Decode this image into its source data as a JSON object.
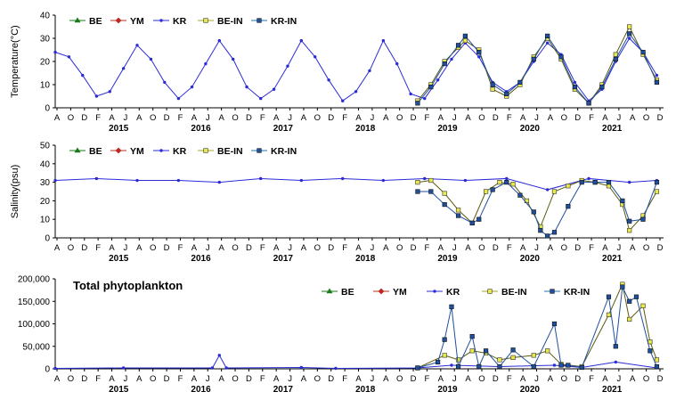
{
  "colors": {
    "BE": "#1a7a1a",
    "YM": "#c0281e",
    "KR": "#2b2bd6",
    "BE-IN": "#a3a81e",
    "KR-IN": "#1f77b4",
    "KR-IN_fill": "#1f4f9e",
    "BE-IN_fill": "#e8e84a"
  },
  "chart_data": [
    {
      "type": "line",
      "ylabel": "Temperature(°C)",
      "ylim": [
        0,
        40
      ],
      "yticks": [
        0,
        10,
        20,
        30,
        40
      ],
      "xlim": [
        "2014-08-01",
        "2021-12-31"
      ],
      "month_tick_labels": [
        "A",
        "O",
        "D",
        "F",
        "A",
        "J",
        "A",
        "O",
        "D",
        "F",
        "A",
        "J",
        "A",
        "O",
        "D",
        "F",
        "A",
        "J",
        "A",
        "O",
        "D",
        "F",
        "A",
        "J",
        "A",
        "O",
        "D",
        "F",
        "A",
        "J",
        "A",
        "O",
        "D",
        "F",
        "A",
        "J",
        "A",
        "O",
        "D",
        "F",
        "A",
        "J",
        "A",
        "O",
        "D"
      ],
      "year_labels": [
        "2015",
        "2016",
        "2017",
        "2018",
        "2019",
        "2020",
        "2021"
      ],
      "legend": [
        "BE",
        "YM",
        "KR",
        "BE-IN",
        "KR-IN"
      ],
      "legend_position": "top-left",
      "series": [
        {
          "name": "KR",
          "x": [
            "2014-08-01",
            "2014-10-01",
            "2014-12-01",
            "2015-02-01",
            "2015-04-01",
            "2015-06-01",
            "2015-08-01",
            "2015-10-01",
            "2015-12-01",
            "2016-02-01",
            "2016-04-01",
            "2016-06-01",
            "2016-08-01",
            "2016-10-01",
            "2016-12-01",
            "2017-02-01",
            "2017-04-01",
            "2017-06-01",
            "2017-08-01",
            "2017-10-01",
            "2017-12-01",
            "2018-02-01",
            "2018-04-01",
            "2018-06-01",
            "2018-08-01",
            "2018-10-01",
            "2018-12-01",
            "2019-02-01",
            "2019-04-01",
            "2019-06-01",
            "2019-08-01",
            "2019-10-01",
            "2019-12-01",
            "2020-02-01",
            "2020-04-01",
            "2020-06-01",
            "2020-08-01",
            "2020-10-01",
            "2020-12-01",
            "2021-02-01",
            "2021-04-01",
            "2021-06-01",
            "2021-08-01",
            "2021-10-01",
            "2021-12-01"
          ],
          "values": [
            24,
            22,
            14,
            5,
            7,
            17,
            27,
            21,
            11,
            4,
            9,
            19,
            29,
            21,
            9,
            4,
            8,
            18,
            29,
            22,
            12,
            3,
            7,
            16,
            29,
            19,
            6,
            4,
            12,
            21,
            28,
            22,
            11,
            7,
            11,
            20,
            28,
            23,
            11,
            3,
            8,
            20,
            30,
            24,
            14
          ]
        },
        {
          "name": "KR-IN",
          "x": [
            "2019-01-01",
            "2019-03-01",
            "2019-05-01",
            "2019-07-01",
            "2019-08-01",
            "2019-10-01",
            "2019-12-01",
            "2020-02-01",
            "2020-04-01",
            "2020-06-01",
            "2020-08-01",
            "2020-10-01",
            "2020-12-01",
            "2021-02-01",
            "2021-04-01",
            "2021-06-01",
            "2021-08-01",
            "2021-10-01",
            "2021-12-01"
          ],
          "values": [
            2,
            9,
            19,
            27,
            31,
            24,
            10,
            6,
            11,
            21,
            31,
            22,
            9,
            2,
            9,
            21,
            32,
            24,
            11
          ]
        },
        {
          "name": "BE-IN",
          "x": [
            "2019-01-01",
            "2019-03-01",
            "2019-05-01",
            "2019-07-01",
            "2019-08-01",
            "2019-10-01",
            "2019-12-01",
            "2020-02-01",
            "2020-04-01",
            "2020-06-01",
            "2020-08-01",
            "2020-10-01",
            "2020-12-01",
            "2021-02-01",
            "2021-04-01",
            "2021-06-01",
            "2021-08-01",
            "2021-10-01",
            "2021-12-01"
          ],
          "values": [
            3,
            10,
            20,
            26,
            29,
            25,
            8,
            5,
            10,
            22,
            30,
            21,
            8,
            2,
            10,
            23,
            35,
            23,
            12
          ]
        }
      ]
    },
    {
      "type": "line",
      "ylabel": "Salinity(psu)",
      "ylim": [
        0,
        50
      ],
      "yticks": [
        0,
        10,
        20,
        30,
        40,
        50
      ],
      "xlim": [
        "2014-08-01",
        "2021-12-31"
      ],
      "month_tick_labels": [
        "A",
        "O",
        "D",
        "F",
        "A",
        "J",
        "A",
        "O",
        "D",
        "F",
        "A",
        "J",
        "A",
        "O",
        "D",
        "F",
        "A",
        "J",
        "A",
        "O",
        "D",
        "F",
        "A",
        "J",
        "A",
        "O",
        "D",
        "F",
        "A",
        "J",
        "A",
        "O",
        "D",
        "F",
        "A",
        "J",
        "A",
        "O",
        "D",
        "F",
        "A",
        "J",
        "A",
        "O",
        "D"
      ],
      "year_labels": [
        "2015",
        "2016",
        "2017",
        "2018",
        "2019",
        "2020",
        "2021"
      ],
      "legend": [
        "BE",
        "YM",
        "KR",
        "BE-IN",
        "KR-IN"
      ],
      "legend_position": "top-left",
      "series": [
        {
          "name": "KR",
          "x": [
            "2014-08-01",
            "2015-02-01",
            "2015-08-01",
            "2016-02-01",
            "2016-08-01",
            "2017-02-01",
            "2017-08-01",
            "2018-02-01",
            "2018-08-01",
            "2019-02-01",
            "2019-08-01",
            "2020-02-01",
            "2020-08-01",
            "2021-02-01",
            "2021-08-01",
            "2021-12-01"
          ],
          "values": [
            31,
            32,
            31,
            31,
            30,
            32,
            31,
            32,
            31,
            32,
            31,
            32,
            26,
            32,
            30,
            31
          ]
        },
        {
          "name": "KR-IN",
          "x": [
            "2019-01-01",
            "2019-03-01",
            "2019-05-01",
            "2019-07-01",
            "2019-09-01",
            "2019-10-01",
            "2019-12-01",
            "2020-02-01",
            "2020-04-01",
            "2020-06-01",
            "2020-07-01",
            "2020-08-01",
            "2020-09-01",
            "2020-11-01",
            "2021-01-01",
            "2021-03-01",
            "2021-05-01",
            "2021-07-01",
            "2021-08-01",
            "2021-10-01",
            "2021-12-01"
          ],
          "values": [
            25,
            25,
            18,
            12,
            8,
            10,
            26,
            30,
            23,
            14,
            4,
            1,
            3,
            17,
            30,
            30,
            30,
            20,
            9,
            10,
            30
          ]
        },
        {
          "name": "BE-IN",
          "x": [
            "2019-01-01",
            "2019-03-01",
            "2019-05-01",
            "2019-07-01",
            "2019-09-01",
            "2019-11-01",
            "2020-01-01",
            "2020-03-01",
            "2020-05-01",
            "2020-07-01",
            "2020-09-01",
            "2020-11-01",
            "2021-01-01",
            "2021-03-01",
            "2021-05-01",
            "2021-07-01",
            "2021-08-01",
            "2021-10-01",
            "2021-12-01"
          ],
          "values": [
            30,
            31,
            24,
            15,
            8,
            25,
            30,
            29,
            20,
            6,
            25,
            28,
            31,
            30,
            28,
            18,
            4,
            12,
            25
          ]
        }
      ]
    },
    {
      "type": "line",
      "title": "Total phytoplankton",
      "ylim": [
        0,
        200000
      ],
      "yticks": [
        0,
        50000,
        100000,
        150000,
        200000
      ],
      "ytick_labels": [
        "0",
        "50,000",
        "100,000",
        "150,000",
        "200,000"
      ],
      "xlim": [
        "2014-08-01",
        "2021-12-31"
      ],
      "month_tick_labels": [
        "A",
        "O",
        "D",
        "F",
        "A",
        "J",
        "A",
        "O",
        "D",
        "F",
        "A",
        "J",
        "A",
        "O",
        "D",
        "F",
        "A",
        "J",
        "A",
        "O",
        "D",
        "F",
        "A",
        "J",
        "A",
        "O",
        "D",
        "F",
        "A",
        "J",
        "A",
        "O",
        "D",
        "F",
        "A",
        "J",
        "A",
        "O",
        "D",
        "F",
        "A",
        "J",
        "A",
        "O",
        "D"
      ],
      "year_labels": [
        "2015",
        "2016",
        "2017",
        "2018",
        "2019",
        "2020",
        "2021"
      ],
      "legend": [
        "BE",
        "YM",
        "KR",
        "BE-IN",
        "KR-IN"
      ],
      "legend_position": "top-right",
      "series": [
        {
          "name": "KR",
          "x": [
            "2014-08-01",
            "2015-06-01",
            "2016-07-01",
            "2016-08-01",
            "2016-09-01",
            "2017-08-01",
            "2018-01-01",
            "2019-01-01",
            "2019-06-01",
            "2020-01-01",
            "2020-09-01",
            "2021-01-01",
            "2021-06-01",
            "2021-12-01"
          ],
          "values": [
            1000,
            2000,
            2000,
            30000,
            2000,
            3000,
            1000,
            2000,
            8000,
            5000,
            8000,
            3000,
            15000,
            2000
          ]
        },
        {
          "name": "KR-IN",
          "x": [
            "2019-01-01",
            "2019-04-01",
            "2019-05-01",
            "2019-06-01",
            "2019-07-01",
            "2019-09-01",
            "2019-10-01",
            "2019-11-01",
            "2020-01-01",
            "2020-03-01",
            "2020-06-01",
            "2020-09-01",
            "2020-10-01",
            "2020-11-01",
            "2021-01-01",
            "2021-05-01",
            "2021-06-01",
            "2021-07-01",
            "2021-08-01",
            "2021-09-01",
            "2021-11-01",
            "2021-12-01"
          ],
          "values": [
            2000,
            15000,
            65000,
            138000,
            5000,
            72000,
            5000,
            40000,
            5000,
            42000,
            5000,
            100000,
            8000,
            8000,
            3000,
            160000,
            50000,
            182000,
            150000,
            160000,
            40000,
            5000
          ]
        },
        {
          "name": "BE-IN",
          "x": [
            "2019-01-01",
            "2019-05-01",
            "2019-07-01",
            "2019-09-01",
            "2019-11-01",
            "2020-01-01",
            "2020-03-01",
            "2020-06-01",
            "2020-08-01",
            "2020-10-01",
            "2021-01-01",
            "2021-05-01",
            "2021-07-01",
            "2021-08-01",
            "2021-10-01",
            "2021-11-01",
            "2021-12-01"
          ],
          "values": [
            2000,
            30000,
            20000,
            40000,
            35000,
            20000,
            25000,
            30000,
            40000,
            10000,
            5000,
            120000,
            188000,
            110000,
            140000,
            60000,
            20000
          ]
        }
      ]
    }
  ]
}
